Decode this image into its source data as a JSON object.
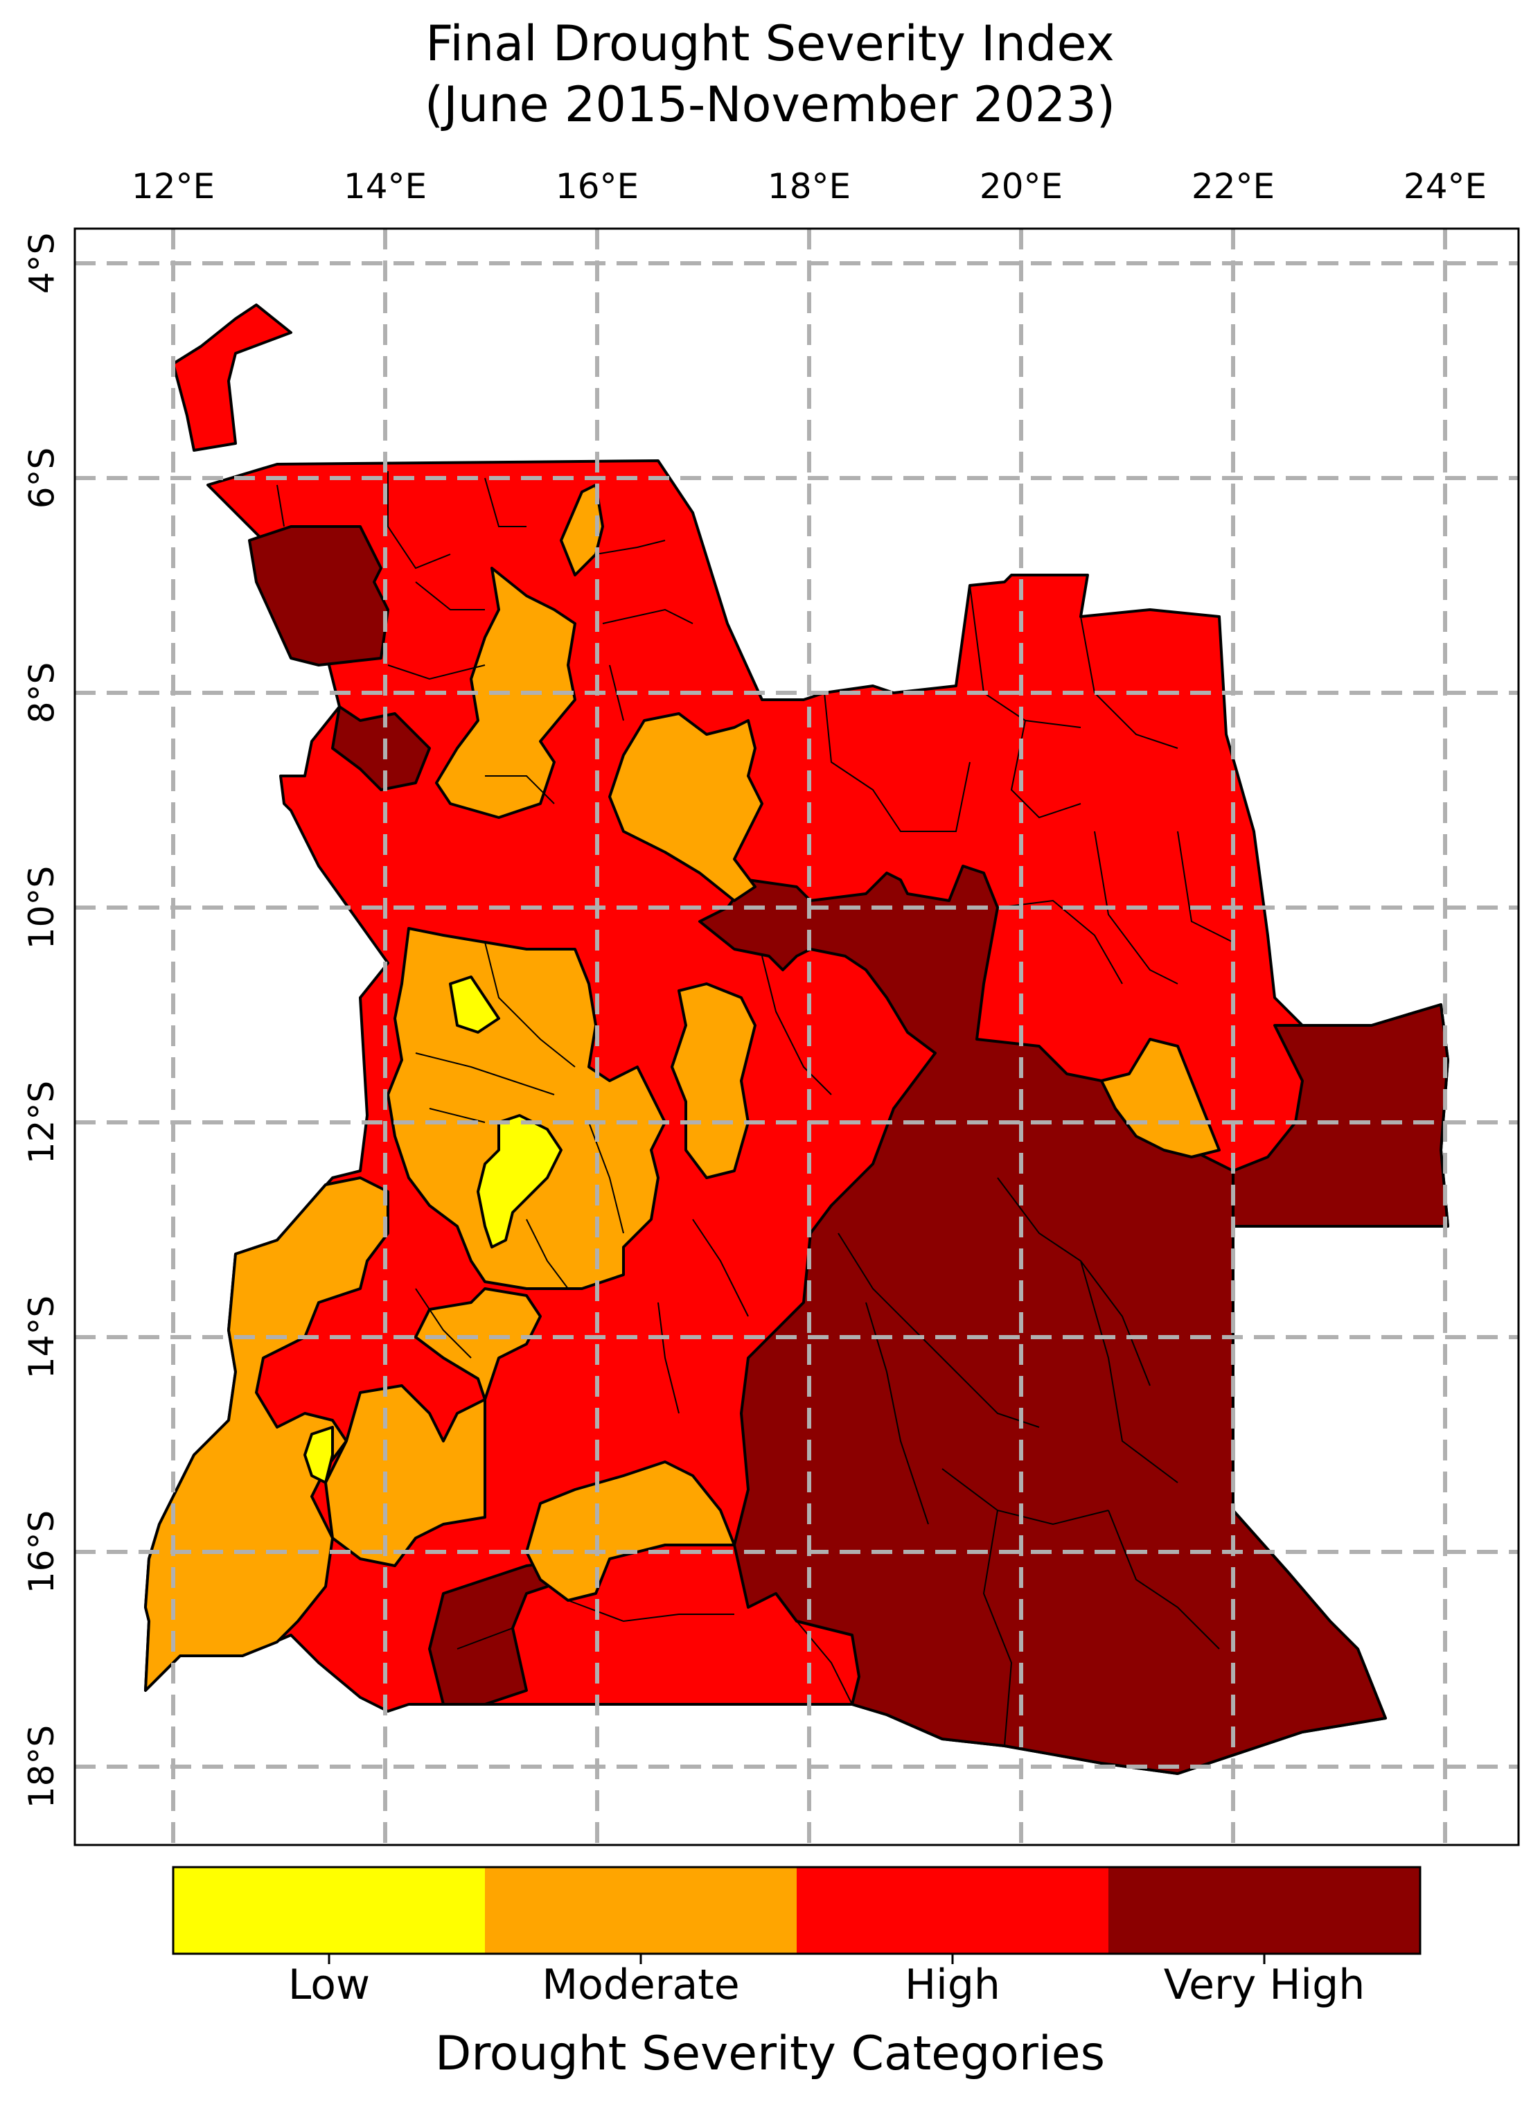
{
  "title": {
    "line1": "Final Drought Severity Index",
    "line2": "(June 2015-November 2023)"
  },
  "axes": {
    "lon_ticks": [
      "12°E",
      "14°E",
      "16°E",
      "18°E",
      "20°E",
      "22°E",
      "24°E"
    ],
    "lat_ticks": [
      "4°S",
      "6°S",
      "8°S",
      "10°S",
      "12°S",
      "14°S",
      "16°S",
      "18°S"
    ],
    "lon_values": [
      12,
      14,
      16,
      18,
      20,
      22,
      24
    ],
    "lat_values": [
      -4,
      -6,
      -8,
      -10,
      -12,
      -14,
      -16,
      -18
    ],
    "lon_range": [
      11.1,
      24.7
    ],
    "lat_range": [
      -18.7,
      -3.7
    ],
    "grid": true
  },
  "colorbar": {
    "title": "Drought Severity Categories",
    "categories": [
      {
        "label": "Low",
        "color": "#ffff00"
      },
      {
        "label": "Moderate",
        "color": "#ffa500"
      },
      {
        "label": "High",
        "color": "#ff0000"
      },
      {
        "label": "Very High",
        "color": "#8b0000"
      }
    ]
  },
  "colors": {
    "border": "#000000",
    "grid": "#b0b0b0"
  }
}
